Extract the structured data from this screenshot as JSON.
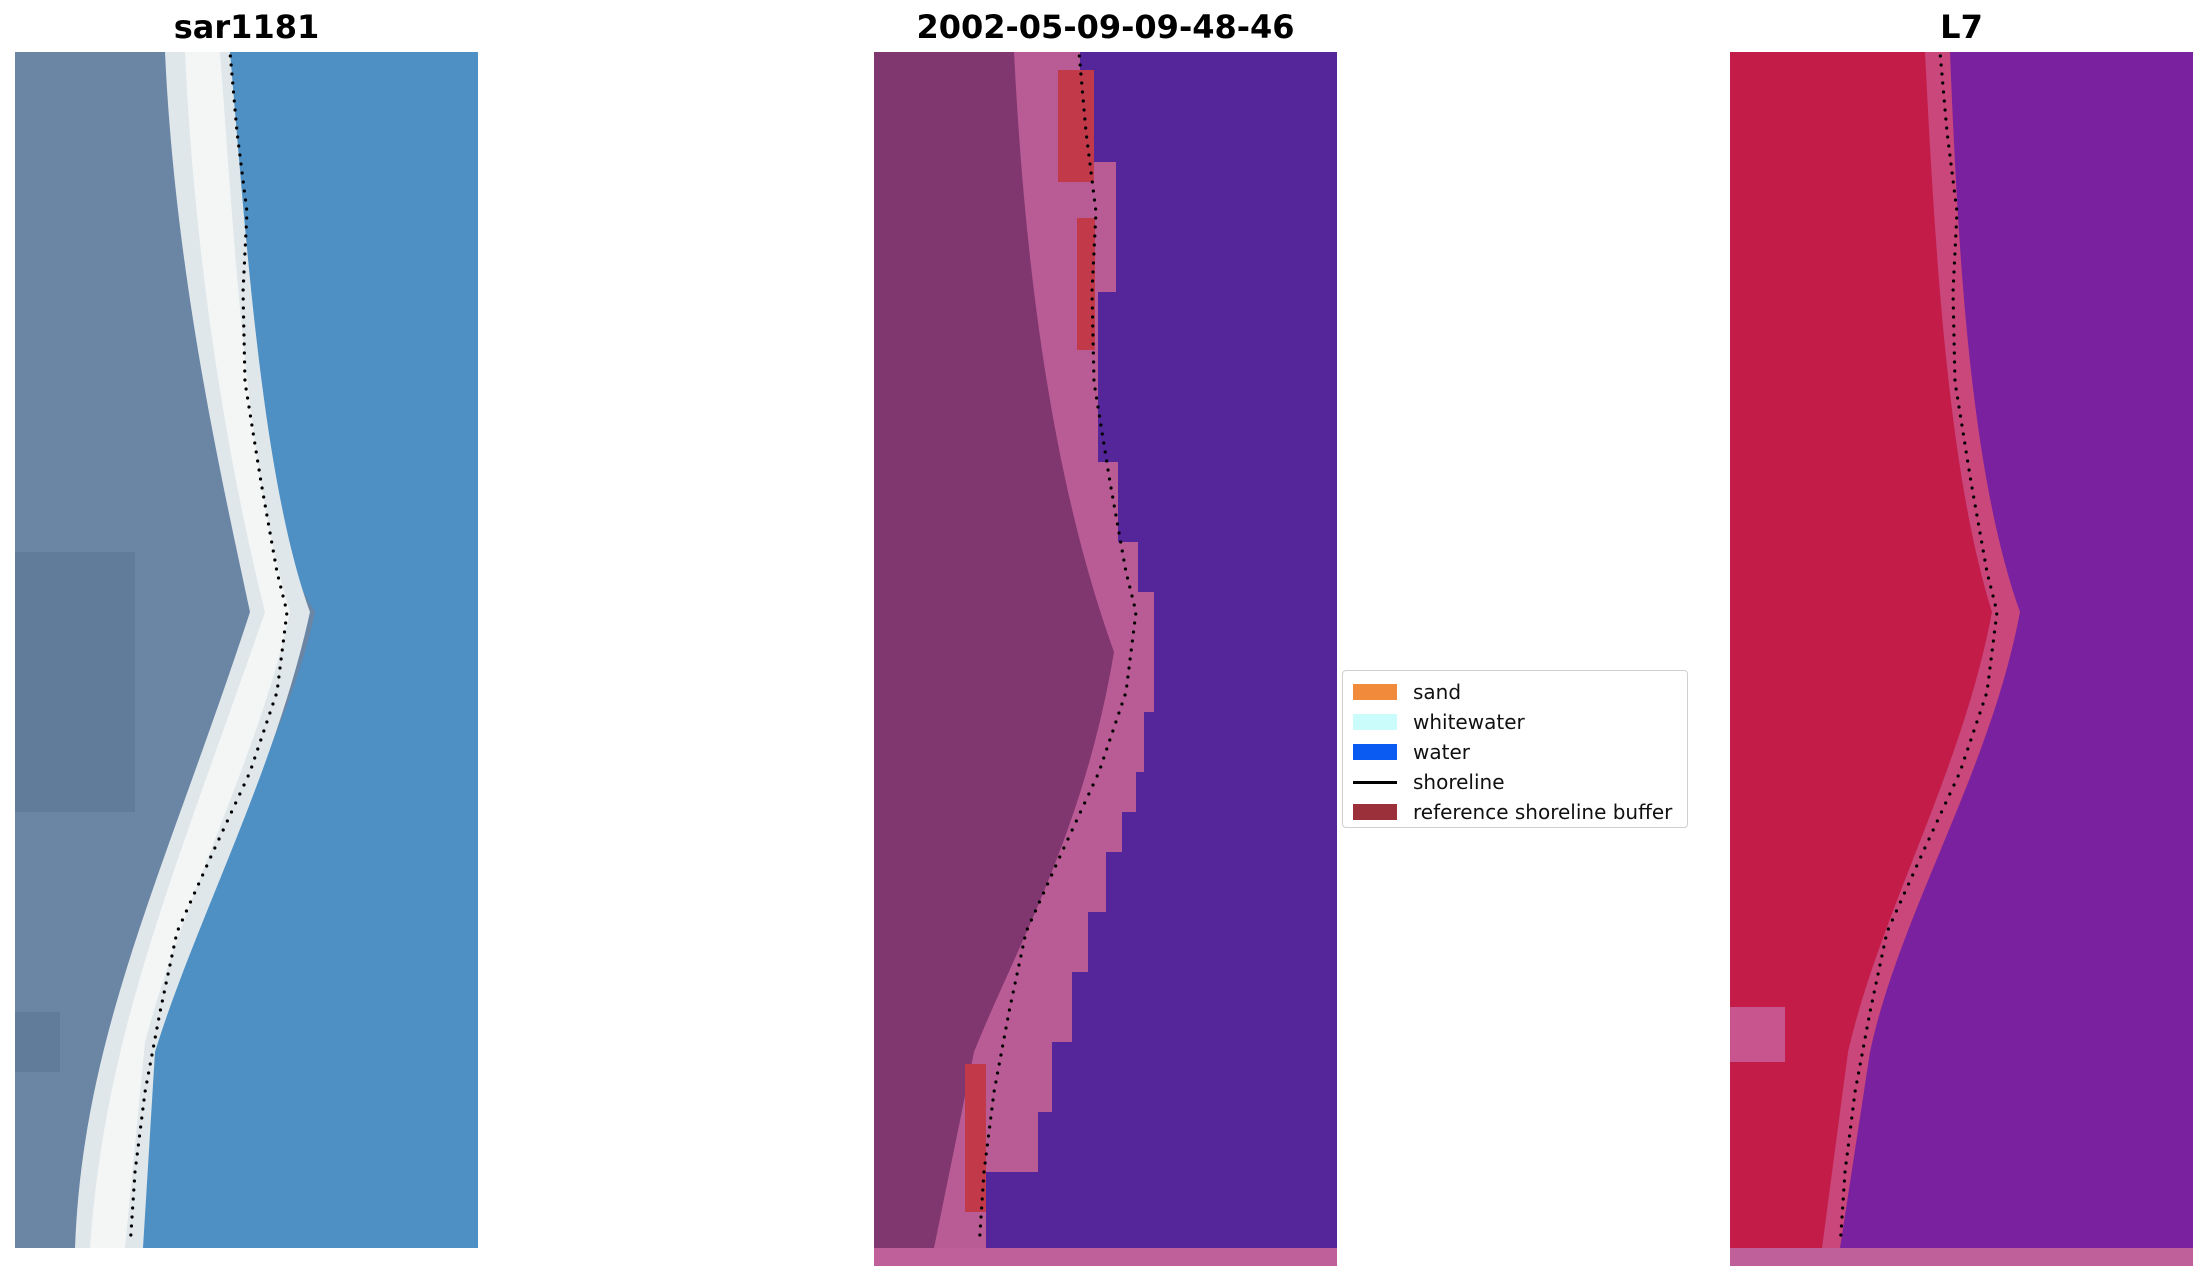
{
  "panels": [
    {
      "title": "sar1181",
      "kind": "rgb"
    },
    {
      "title": "2002-05-09-09-48-46",
      "kind": "classified"
    },
    {
      "title": "L7",
      "kind": "false-color"
    }
  ],
  "legend": {
    "items": [
      {
        "label": "sand",
        "type": "patch",
        "color": "#f28a3c"
      },
      {
        "label": "whitewater",
        "type": "patch",
        "color": "#c9fcfa"
      },
      {
        "label": "water",
        "type": "patch",
        "color": "#0a5bf2"
      },
      {
        "label": "shoreline",
        "type": "line",
        "color": "#000000"
      },
      {
        "label": "reference shoreline buffer",
        "type": "patch",
        "color": "#9b2f3a"
      }
    ]
  },
  "colors": {
    "rgb_land": "#6b86a5",
    "rgb_beach": "#f2f4f4",
    "rgb_water": "#4e8fc4",
    "classified_land": "#80366e",
    "classified_sand": "#b95c95",
    "classified_water": "#55259a",
    "classified_buffer": "#c23a4a",
    "falsecolor_land": "#c41c48",
    "falsecolor_water": "#7a219f",
    "shoreline_dots": "#000000"
  }
}
